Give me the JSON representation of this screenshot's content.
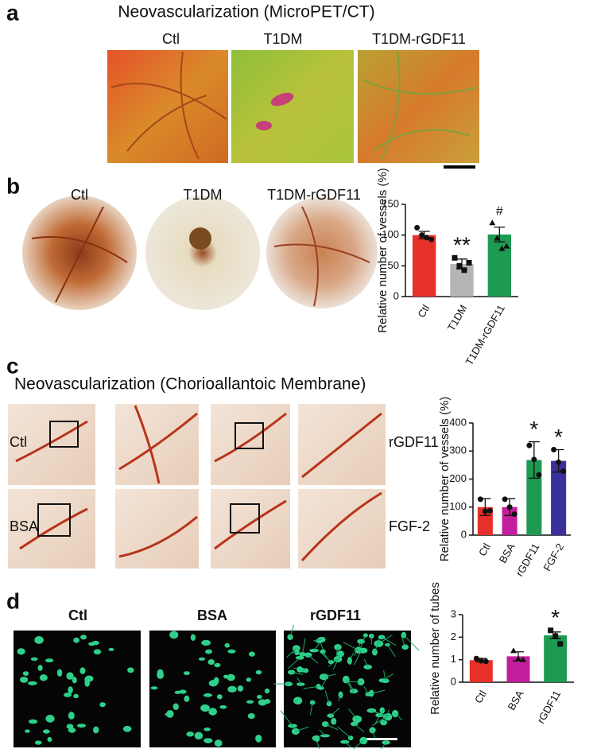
{
  "panels": {
    "a": {
      "label": "a",
      "title": "Neovascularization (MicroPET/CT)",
      "images": [
        "Ctl",
        "T1DM",
        "T1DM-rGDF11"
      ]
    },
    "b": {
      "label": "b",
      "images": [
        "Ctl",
        "T1DM",
        "T1DM-rGDF11"
      ]
    },
    "c": {
      "label": "c",
      "title": "Neovascularization (Chorioallantoic Membrane)",
      "images": [
        "Ctl",
        "BSA",
        "rGDF11",
        "FGF-2"
      ]
    },
    "d": {
      "label": "d",
      "images": [
        "Ctl",
        "BSA",
        "rGDF11"
      ]
    }
  },
  "chart_data": [
    {
      "type": "bar",
      "y_label": "Relative number of vessels (%)",
      "categories": [
        "Ctl",
        "T1DM",
        "T1DM-rGDF11"
      ],
      "values": [
        100,
        53,
        101
      ],
      "errors": [
        6,
        8,
        12
      ],
      "colors": [
        "#e8302a",
        "#b5b5b5",
        "#1e9a52"
      ],
      "points": [
        [
          112,
          100,
          96,
          93
        ],
        [
          63,
          50,
          43,
          55
        ],
        [
          120,
          95,
          78,
          82
        ]
      ],
      "point_shapes": [
        "circle",
        "square",
        "triangle"
      ],
      "annotations": [
        {
          "category": "T1DM",
          "text": "**"
        },
        {
          "category": "T1DM-rGDF11",
          "text": "#"
        }
      ],
      "ylim": [
        0,
        150
      ],
      "yticks": [
        0,
        50,
        100,
        150
      ]
    },
    {
      "type": "bar",
      "y_label": "Relative number of vessels (%)",
      "categories": [
        "Ctl",
        "BSA",
        "rGDF11",
        "FGF-2"
      ],
      "values": [
        100,
        100,
        268,
        265
      ],
      "errors": [
        30,
        30,
        65,
        40
      ],
      "colors": [
        "#e8302a",
        "#c21d9c",
        "#1e9a52",
        "#3b2f9e"
      ],
      "points": [
        [
          128,
          85,
          87
        ],
        [
          128,
          100,
          75
        ],
        [
          320,
          270,
          215
        ],
        [
          305,
          260,
          228
        ]
      ],
      "point_shapes": [
        "circle",
        "circle",
        "circle",
        "circle"
      ],
      "annotations": [
        {
          "category": "rGDF11",
          "text": "*"
        },
        {
          "category": "FGF-2",
          "text": "*"
        }
      ],
      "ylim": [
        0,
        400
      ],
      "yticks": [
        0,
        100,
        200,
        300,
        400
      ]
    },
    {
      "type": "bar",
      "y_label": "Relative number of tubes",
      "categories": [
        "Ctl",
        "BSA",
        "rGDF11"
      ],
      "values": [
        0.98,
        1.15,
        2.08
      ],
      "errors": [
        0.08,
        0.2,
        0.15
      ],
      "colors": [
        "#e8302a",
        "#c21d9c",
        "#1e9a52"
      ],
      "points": [
        [
          1.05,
          0.95,
          0.92
        ],
        [
          1.4,
          1.05,
          1.0
        ],
        [
          2.3,
          2.05,
          1.7
        ]
      ],
      "point_shapes": [
        "circle",
        "triangle",
        "square"
      ],
      "annotations": [
        {
          "category": "rGDF11",
          "text": "*"
        }
      ],
      "ylim": [
        0,
        3
      ],
      "yticks": [
        0,
        1,
        2,
        3
      ]
    }
  ]
}
